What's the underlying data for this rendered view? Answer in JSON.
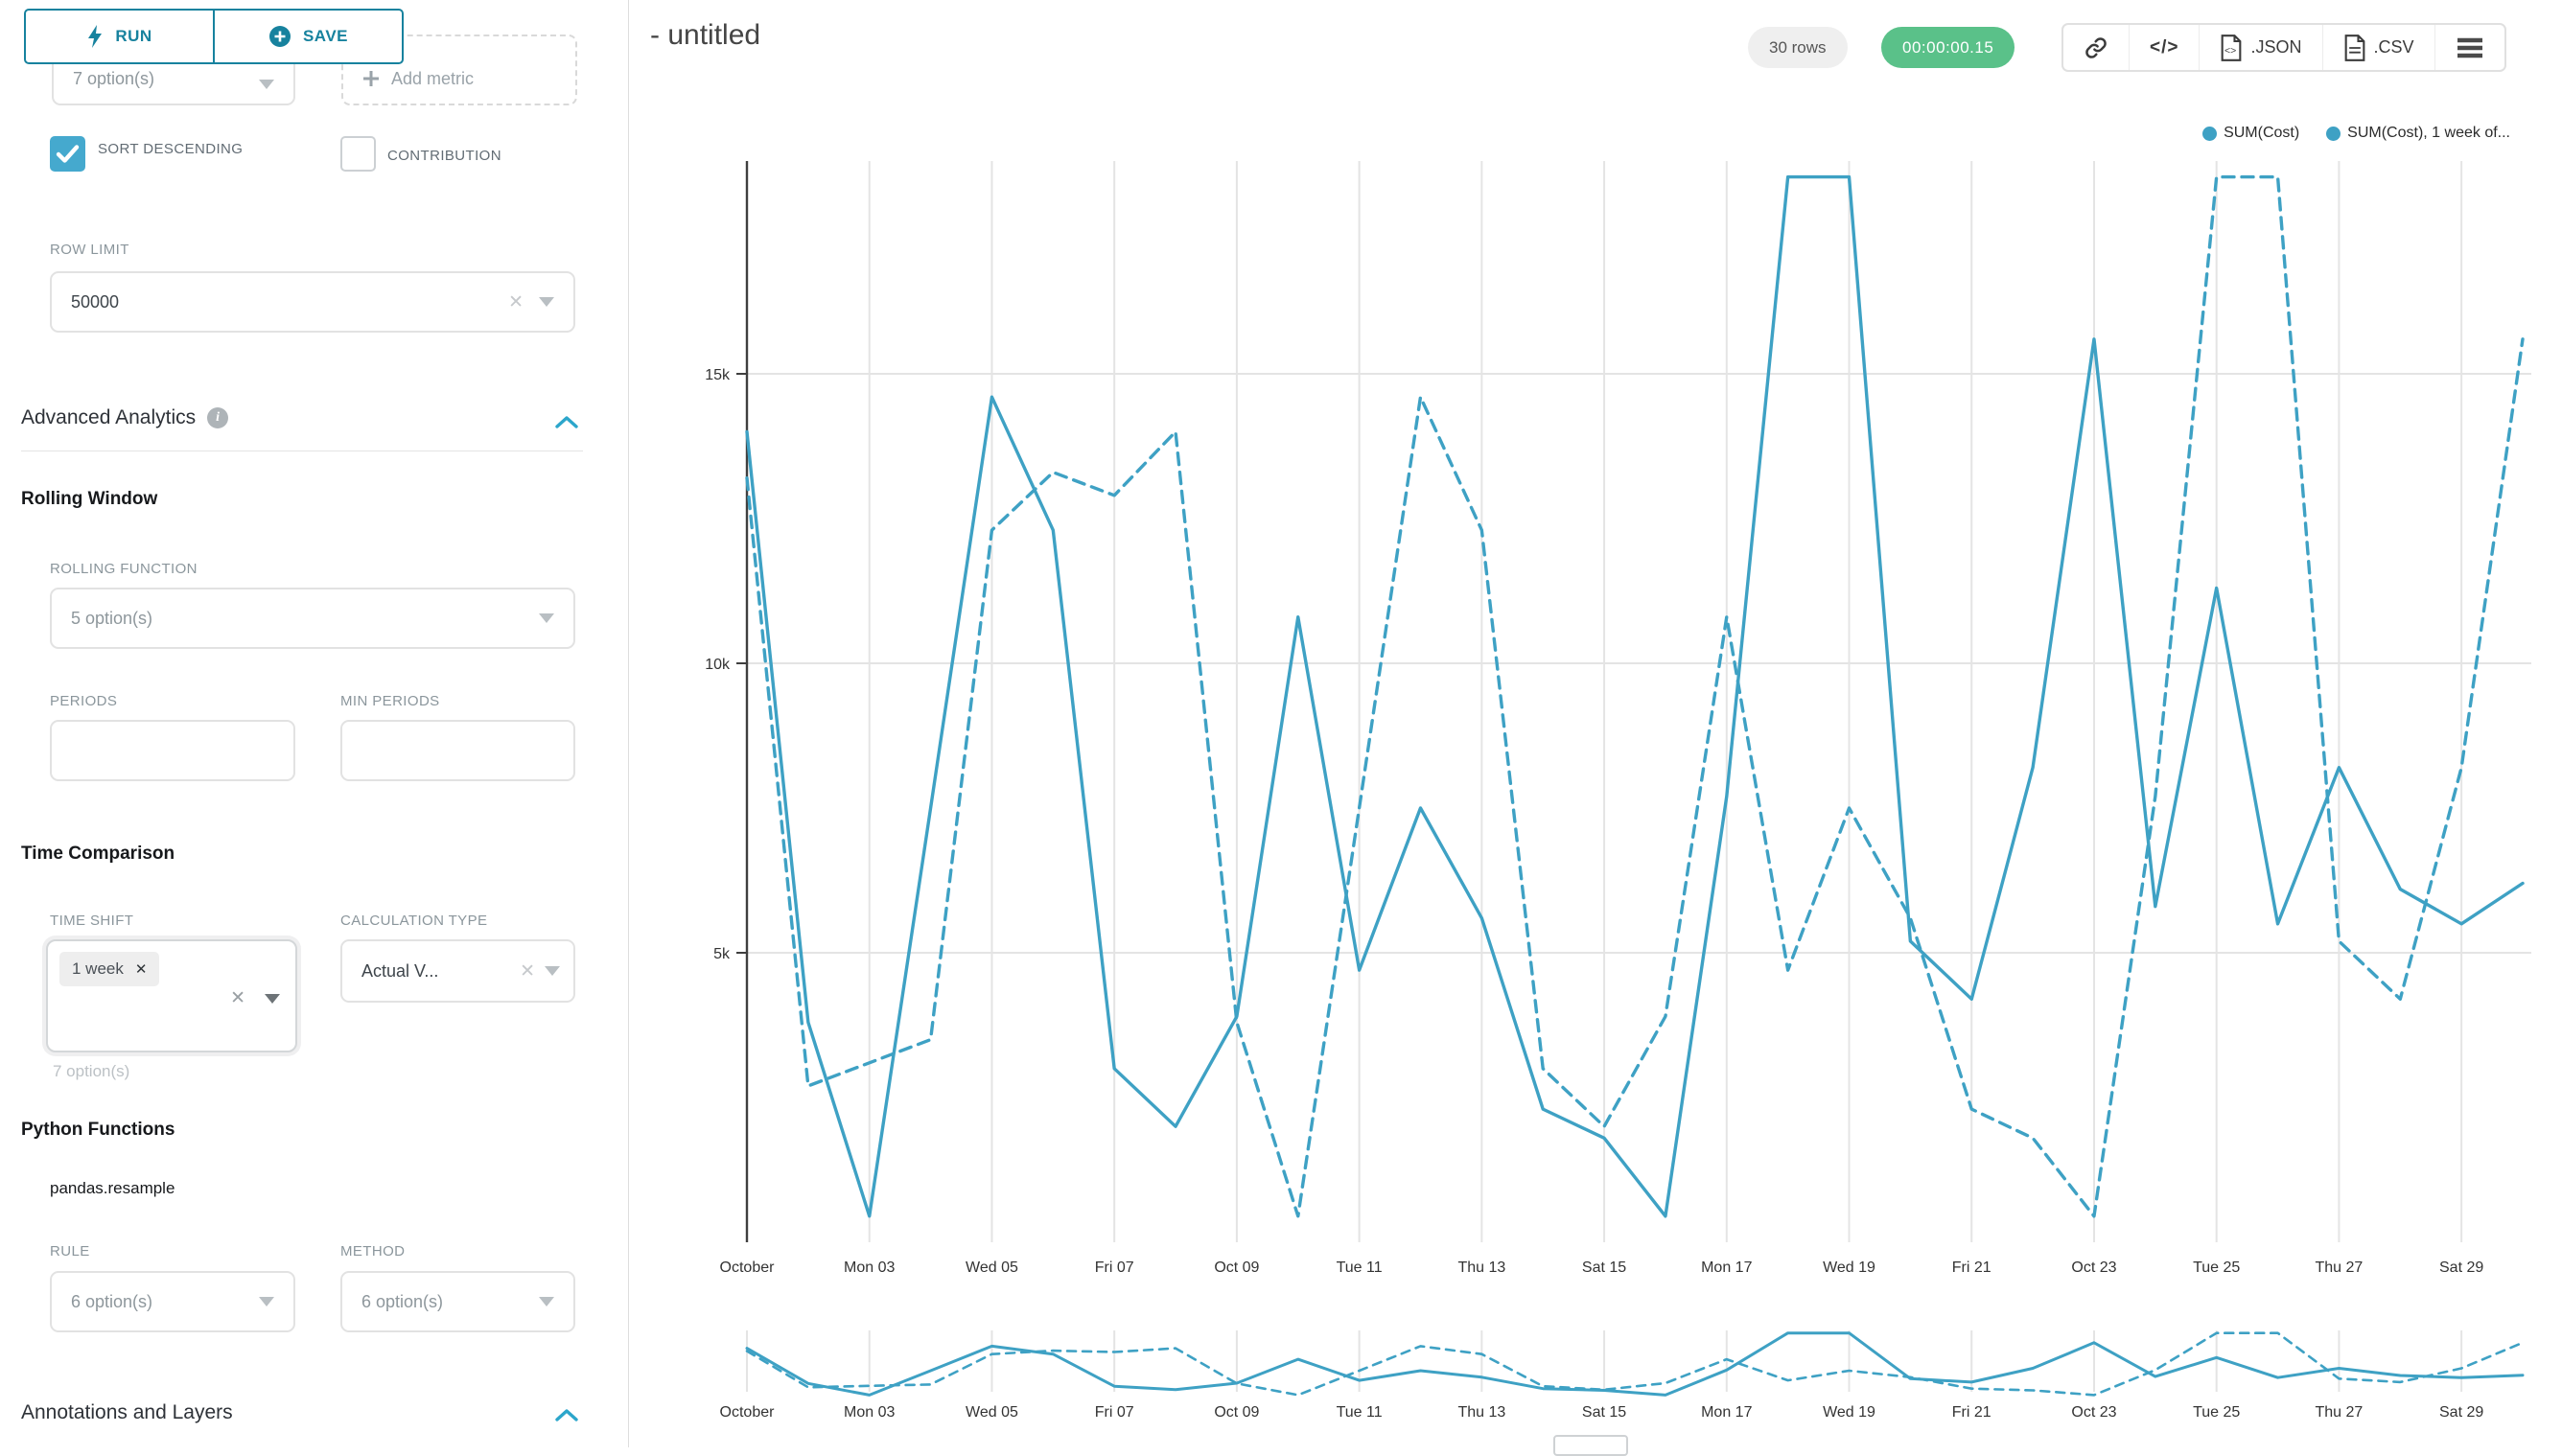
{
  "colors": {
    "series": "#3ea1c4",
    "accent": "#20a7c9",
    "run_save": "#17829e",
    "timer_bg": "#5ac189",
    "grid": "#e4e4e4",
    "axis": "#3f3f3f",
    "tick_text": "#333333"
  },
  "sidebar": {
    "run_label": "RUN",
    "save_label": "SAVE",
    "metrics_value": "7 option(s)",
    "add_metric_label": "Add metric",
    "sort_descending_label": "SORT DESCENDING",
    "sort_descending_checked": true,
    "contribution_label": "CONTRIBUTION",
    "contribution_checked": false,
    "row_limit_label": "ROW LIMIT",
    "row_limit_value": "50000",
    "advanced_title": "Advanced Analytics",
    "rolling_window_title": "Rolling Window",
    "rolling_function_label": "ROLLING FUNCTION",
    "rolling_function_value": "5 option(s)",
    "periods_label": "PERIODS",
    "min_periods_label": "MIN PERIODS",
    "time_comparison_title": "Time Comparison",
    "time_shift_label": "TIME SHIFT",
    "time_shift_tag": "1 week",
    "time_shift_hint": "7 option(s)",
    "calculation_type_label": "CALCULATION TYPE",
    "calculation_type_value": "Actual V...",
    "python_functions_title": "Python Functions",
    "pandas_resample_label": "pandas.resample",
    "rule_label": "RULE",
    "rule_value": "6 option(s)",
    "method_label": "METHOD",
    "method_value": "6 option(s)",
    "annotations_title": "Annotations and Layers"
  },
  "header": {
    "title": "- untitled",
    "rows_badge": "30 rows",
    "timer": "00:00:00.15",
    "json_label": ".JSON",
    "csv_label": ".CSV"
  },
  "chart_data": {
    "type": "line",
    "x_start": "October 01",
    "x_end": "October 30",
    "n_points": 30,
    "x_tick_labels": [
      "October",
      "Mon 03",
      "Wed 05",
      "Fri 07",
      "Oct 09",
      "Tue 11",
      "Thu 13",
      "Sat 15",
      "Mon 17",
      "Wed 19",
      "Fri 21",
      "Oct 23",
      "Tue 25",
      "Thu 27",
      "Sat 29"
    ],
    "x_tick_every": 2,
    "y_ticks": [
      5000,
      10000,
      15000
    ],
    "y_tick_labels": [
      "5k",
      "10k",
      "15k"
    ],
    "ylim": [
      0,
      18600
    ],
    "grid": true,
    "legend_position": "top-right",
    "series": [
      {
        "name": "SUM(Cost)",
        "style": "solid",
        "values": [
          14000,
          3800,
          450,
          7500,
          14600,
          12300,
          3000,
          2000,
          3900,
          10800,
          4700,
          7500,
          5600,
          2300,
          1800,
          450,
          7700,
          18400,
          18400,
          5200,
          4200,
          8200,
          15600,
          5800,
          11300,
          5500,
          8200,
          6100,
          5500,
          6200
        ]
      },
      {
        "name": "SUM(Cost), 1 week of...",
        "style": "dashed",
        "note": "same metric shifted 1 week",
        "values": [
          13200,
          2700,
          3100,
          3500,
          12300,
          13300,
          12900,
          14000,
          3800,
          450,
          7500,
          14600,
          12300,
          3000,
          2000,
          3900,
          10800,
          4700,
          7500,
          5600,
          2300,
          1800,
          450,
          7700,
          18400,
          18400,
          5200,
          4200,
          8200,
          15600
        ]
      }
    ],
    "mini_chart": {
      "present": true,
      "same_series": true
    }
  }
}
